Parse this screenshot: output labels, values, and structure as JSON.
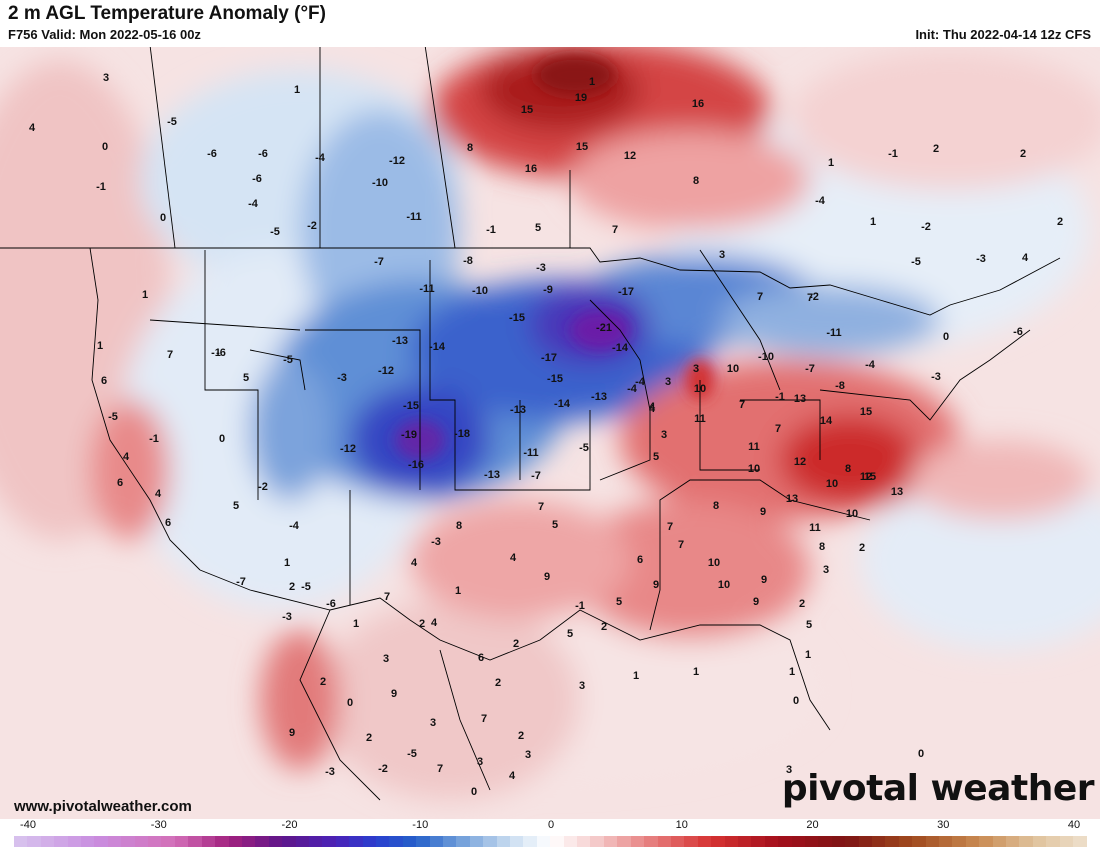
{
  "header": {
    "title": "2 m AGL Temperature Anomaly (°F)",
    "subtitle": "F756 Valid: Mon 2022-05-16 00z",
    "init": "Init: Thu 2022-04-14 12z CFS"
  },
  "footer": {
    "site": "www.pivotalweather.com",
    "brand": "pivotal weather"
  },
  "colorbar": {
    "ticks": [
      "-40",
      "-30",
      "-20",
      "-10",
      "0",
      "10",
      "20",
      "30",
      "40"
    ],
    "stops": [
      {
        "v": -40,
        "c": "#d8c4ee"
      },
      {
        "v": -34,
        "c": "#c98ee0"
      },
      {
        "v": -28,
        "c": "#d36fb8"
      },
      {
        "v": -24,
        "c": "#a2217f"
      },
      {
        "v": -20,
        "c": "#5e168a"
      },
      {
        "v": -16,
        "c": "#4a22b8"
      },
      {
        "v": -13,
        "c": "#2a3fcf"
      },
      {
        "v": -10,
        "c": "#2560c9"
      },
      {
        "v": -7,
        "c": "#6a9ad8"
      },
      {
        "v": -3,
        "c": "#c9dcf0"
      },
      {
        "v": 0,
        "c": "#ffffff"
      },
      {
        "v": 3,
        "c": "#f6d2d2"
      },
      {
        "v": 7,
        "c": "#e88686"
      },
      {
        "v": 12,
        "c": "#d63232"
      },
      {
        "v": 17,
        "c": "#a4101c"
      },
      {
        "v": 22,
        "c": "#7e1414"
      },
      {
        "v": 27,
        "c": "#a04a1e"
      },
      {
        "v": 32,
        "c": "#c98a52"
      },
      {
        "v": 36,
        "c": "#dfc19a"
      },
      {
        "v": 40,
        "c": "#eee0cc"
      }
    ]
  },
  "map_labels": [
    "3",
    "1",
    "4",
    "-5",
    "0",
    "-6",
    "-6",
    "-4",
    "-1",
    "-6",
    "0",
    "-4",
    "-5",
    "-2",
    "-12",
    "-10",
    "-11",
    "-1",
    "5",
    "15",
    "19",
    "16",
    "15",
    "12",
    "16",
    "8",
    "8",
    "7",
    "1",
    "2",
    "-1",
    "2",
    "2",
    "-4",
    "1",
    "1",
    "-2",
    "-8",
    "-7",
    "-11",
    "-10",
    "-9",
    "-3",
    "3",
    "-15",
    "-13",
    "-14",
    "-12",
    "-3",
    "-15",
    "-17",
    "-21",
    "-17",
    "-14",
    "-15",
    "-13",
    "-14",
    "-13",
    "-4",
    "-19",
    "-18",
    "-16",
    "-12",
    "-13",
    "-11",
    "-7",
    "-5",
    "-4",
    "3",
    "4",
    "3",
    "5",
    "7",
    "7",
    "-1",
    "-2",
    "-11",
    "-10",
    "-7",
    "-8",
    "-4",
    "-6",
    "0",
    "-3",
    "-5",
    "-3",
    "4",
    "1",
    "7",
    "1",
    "6",
    "5",
    "-5",
    "0",
    "-1",
    "-5",
    "4",
    "6",
    "6",
    "4",
    "-6",
    "-1",
    "5",
    "-2",
    "-4",
    "2",
    "1",
    "-5",
    "-3",
    "-7",
    "-6",
    "-3",
    "4",
    "1",
    "8",
    "7",
    "2",
    "7",
    "5",
    "9",
    "4",
    "3",
    "10",
    "10",
    "7",
    "7",
    "11",
    "10",
    "12",
    "13",
    "14",
    "15",
    "8",
    "12",
    "15",
    "13",
    "10",
    "13",
    "9",
    "10",
    "11",
    "8",
    "11",
    "7",
    "8",
    "9",
    "10",
    "10",
    "9",
    "9",
    "7",
    "6",
    "5",
    "5",
    "2",
    "3",
    "2",
    "2",
    "2",
    "-1",
    "4",
    "4",
    "5",
    "3",
    "1",
    "1",
    "1",
    "1",
    "0",
    "0",
    "3",
    "1",
    "3",
    "2",
    "9",
    "9",
    "3",
    "6",
    "2",
    "-2",
    "-5",
    "7",
    "7",
    "2",
    "3",
    "2",
    "0",
    "4",
    "0",
    "-3",
    "3",
    "-4"
  ]
}
